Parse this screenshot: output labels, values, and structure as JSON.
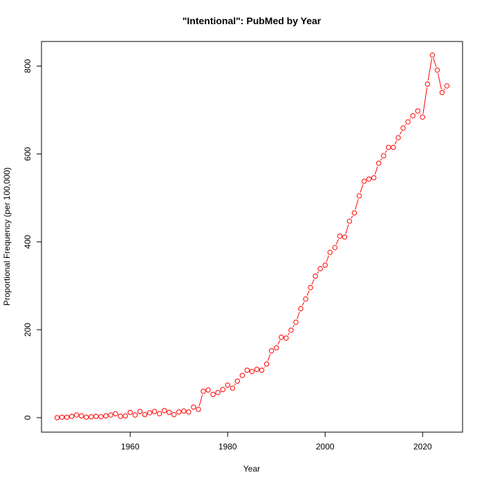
{
  "chart_data": {
    "type": "line",
    "title": "\"Intentional\": PubMed by Year",
    "x_label": "Year",
    "y_label": "Proportional Frequency (per 100,000)",
    "x": [
      1945,
      1946,
      1947,
      1948,
      1949,
      1950,
      1951,
      1952,
      1953,
      1954,
      1955,
      1956,
      1957,
      1958,
      1959,
      1960,
      1961,
      1962,
      1963,
      1964,
      1965,
      1966,
      1967,
      1968,
      1969,
      1970,
      1971,
      1972,
      1973,
      1974,
      1975,
      1976,
      1977,
      1978,
      1979,
      1980,
      1981,
      1982,
      1983,
      1984,
      1985,
      1986,
      1987,
      1988,
      1989,
      1990,
      1991,
      1992,
      1993,
      1994,
      1995,
      1996,
      1997,
      1998,
      1999,
      2000,
      2001,
      2002,
      2003,
      2004,
      2005,
      2006,
      2007,
      2008,
      2009,
      2010,
      2011,
      2012,
      2013,
      2014,
      2015,
      2016,
      2017,
      2018,
      2019,
      2020,
      2021,
      2022,
      2023,
      2024,
      2025
    ],
    "values": [
      0,
      1,
      1,
      3,
      6,
      4,
      1,
      2,
      3,
      2,
      4,
      6,
      9,
      3,
      4,
      12,
      6,
      14,
      7,
      11,
      14,
      9,
      16,
      12,
      7,
      13,
      15,
      13,
      24,
      19,
      60,
      63,
      53,
      57,
      64,
      74,
      67,
      83,
      96,
      108,
      105,
      110,
      108,
      122,
      152,
      159,
      183,
      181,
      199,
      217,
      248,
      270,
      296,
      322,
      339,
      347,
      376,
      387,
      413,
      411,
      447,
      466,
      505,
      538,
      543,
      546,
      579,
      596,
      615,
      615,
      637,
      659,
      673,
      687,
      698,
      684,
      759,
      825,
      791,
      740,
      755
    ],
    "color": "#ff0000",
    "xlim": [
      1941.8,
      2028.2
    ],
    "xticks": [
      1960,
      1980,
      2000,
      2020
    ],
    "ylim": [
      -33,
      856
    ],
    "yticks": [
      0,
      200,
      400,
      600,
      800
    ]
  }
}
